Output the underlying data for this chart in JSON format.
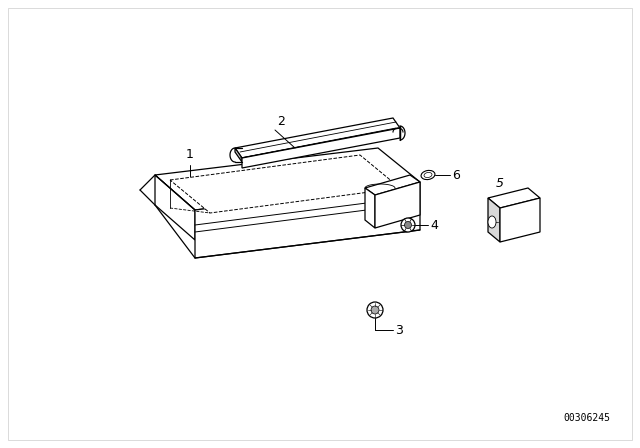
{
  "background_color": "#f2f2f2",
  "line_color": "#000000",
  "part_number_text": "00306245",
  "label_fontsize": 9,
  "part_number_fontsize": 7
}
